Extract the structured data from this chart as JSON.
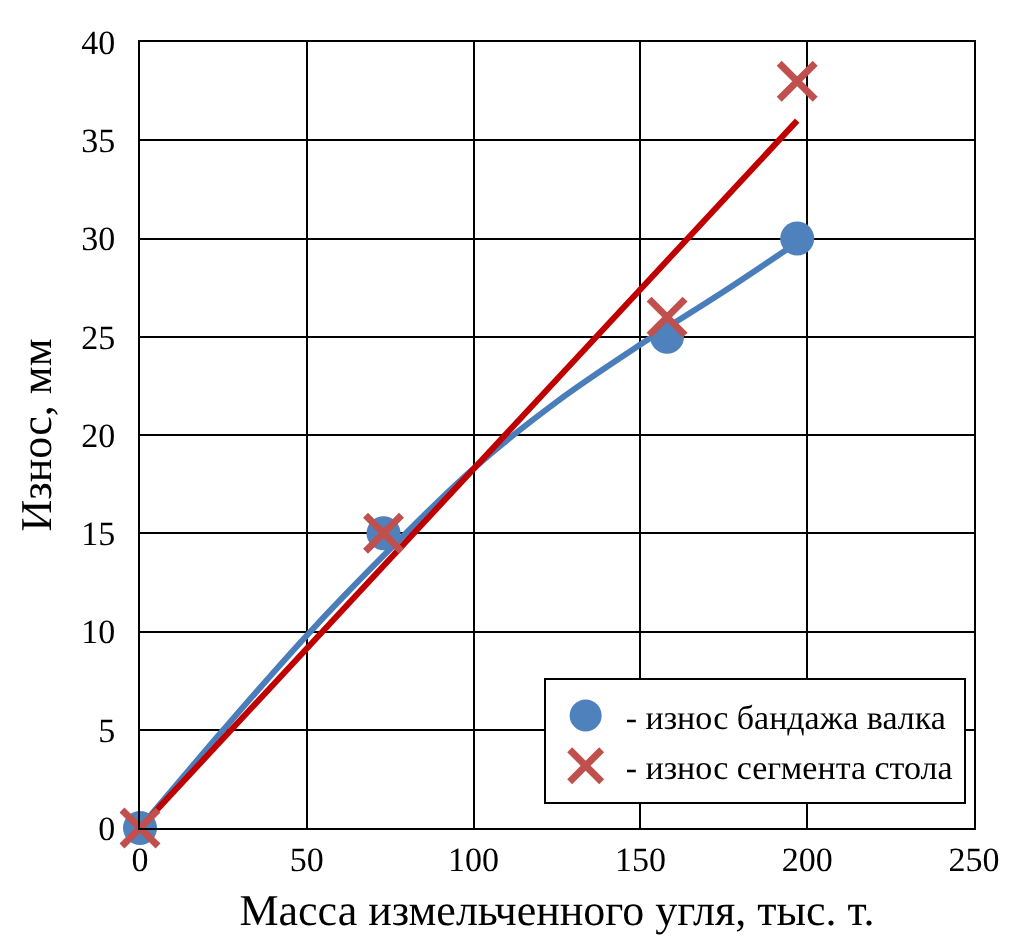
{
  "chart_data": {
    "type": "scatter",
    "xlabel": "Масса измельченного угля, тыс. т.",
    "ylabel": "Износ, мм",
    "xlim": [
      0,
      250
    ],
    "xticks": [
      0,
      50,
      100,
      150,
      200,
      250
    ],
    "ylim": [
      0,
      40
    ],
    "yticks": [
      0,
      5,
      10,
      15,
      20,
      25,
      30,
      35,
      40
    ],
    "grid": true,
    "legend": "bottom right",
    "series": [
      {
        "type": "line",
        "x": [
          0,
          25,
          50,
          75,
          100,
          125,
          150,
          175,
          197
        ],
        "values": [
          0,
          5,
          9.8,
          14.2,
          18.3,
          21.7,
          24.6,
          27.3,
          29.8
        ],
        "color": "#4a7ebb",
        "marker": "none",
        "line_style": "solid"
      },
      {
        "type": "line",
        "x": [
          0,
          197
        ],
        "values": [
          0,
          36
        ],
        "color": "#c00000",
        "marker": "none",
        "line_style": "solid"
      },
      {
        "name": "- износ бандажа валка",
        "x": [
          0,
          73,
          158,
          197
        ],
        "values": [
          0,
          15,
          25,
          30
        ],
        "color": "#4f81bd",
        "marker": "circle"
      },
      {
        "name": "- износ сегмента стола",
        "x": [
          0,
          73,
          158,
          197
        ],
        "values": [
          0,
          15,
          26,
          38
        ],
        "color": "#c0504d",
        "marker": "cross"
      }
    ]
  }
}
